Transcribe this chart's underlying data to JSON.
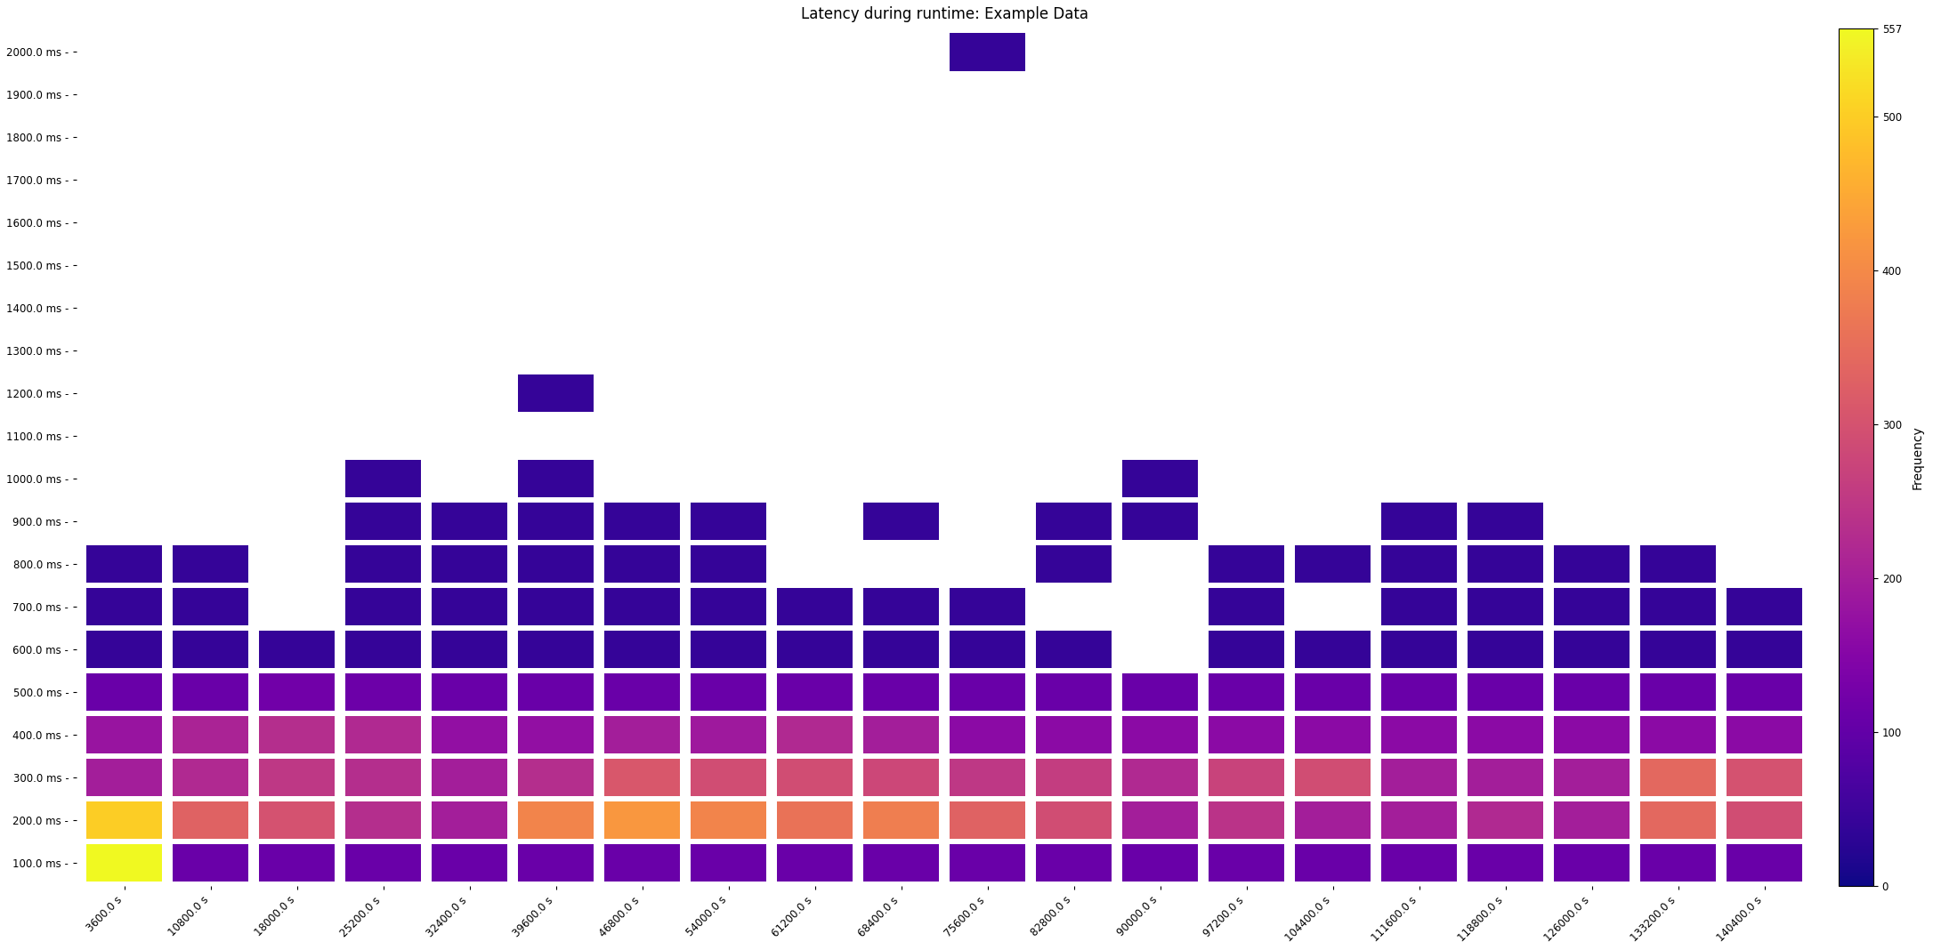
{
  "title": "Latency during runtime: Example Data",
  "colorbar_label": "Frequency",
  "colormap": "plasma",
  "vmin": 0,
  "vmax": 557,
  "x_labels": [
    "3600.0 s",
    "10800.0 s",
    "18000.0 s",
    "25200.0 s",
    "32400.0 s",
    "39600.0 s",
    "46800.0 s",
    "54000.0 s",
    "61200.0 s",
    "68400.0 s",
    "75600.0 s",
    "82800.0 s",
    "90000.0 s",
    "97200.0 s",
    "104400.0 s",
    "111600.0 s",
    "118800.0 s",
    "126000.0 s",
    "133200.0 s",
    "140400.0 s"
  ],
  "y_labels": [
    "100.0 ms -",
    "200.0 ms -",
    "300.0 ms -",
    "400.0 ms -",
    "500.0 ms -",
    "600.0 ms -",
    "700.0 ms -",
    "800.0 ms -",
    "900.0 ms -",
    "1000.0 ms -",
    "1100.0 ms -",
    "1200.0 ms -",
    "1300.0 ms -",
    "1400.0 ms -",
    "1500.0 ms -",
    "1600.0 ms -",
    "1700.0 ms -",
    "1800.0 ms -",
    "1900.0 ms -",
    "2000.0 ms -"
  ],
  "x_values": [
    3600,
    10800,
    18000,
    25200,
    32400,
    39600,
    46800,
    54000,
    61200,
    68400,
    75600,
    82800,
    90000,
    97200,
    104400,
    111600,
    118800,
    126000,
    133200,
    140400
  ],
  "y_values": [
    100,
    200,
    300,
    400,
    500,
    600,
    700,
    800,
    900,
    1000,
    1100,
    1200,
    1300,
    1400,
    1500,
    1600,
    1700,
    1800,
    1900,
    2000
  ],
  "x_step": 7200,
  "y_step": 100,
  "colorbar_ticks": [
    0,
    100,
    200,
    300,
    400,
    500,
    557
  ],
  "background_color": "#ffffff",
  "heatmap": [
    [
      557,
      110,
      110,
      110,
      110,
      110,
      110,
      110,
      110,
      110,
      110,
      110,
      110,
      110,
      110,
      110,
      110,
      110,
      110,
      110
    ],
    [
      500,
      330,
      300,
      230,
      200,
      390,
      420,
      390,
      360,
      380,
      330,
      290,
      200,
      240,
      200,
      200,
      220,
      200,
      340,
      290
    ],
    [
      200,
      220,
      250,
      230,
      200,
      230,
      310,
      290,
      290,
      280,
      250,
      260,
      220,
      270,
      290,
      200,
      200,
      200,
      340,
      300
    ],
    [
      180,
      210,
      230,
      220,
      170,
      170,
      200,
      190,
      220,
      200,
      160,
      160,
      160,
      160,
      160,
      160,
      160,
      160,
      160,
      160
    ],
    [
      110,
      110,
      120,
      115,
      110,
      110,
      110,
      110,
      110,
      110,
      110,
      110,
      110,
      110,
      110,
      110,
      110,
      110,
      110,
      110
    ],
    [
      40,
      40,
      40,
      40,
      40,
      40,
      40,
      40,
      40,
      40,
      40,
      40,
      0,
      40,
      40,
      40,
      40,
      40,
      40,
      40
    ],
    [
      40,
      40,
      0,
      40,
      40,
      40,
      40,
      40,
      40,
      40,
      40,
      0,
      0,
      40,
      0,
      40,
      40,
      40,
      40,
      40
    ],
    [
      40,
      40,
      0,
      40,
      40,
      40,
      40,
      40,
      0,
      0,
      0,
      40,
      0,
      40,
      40,
      40,
      40,
      40,
      40,
      0
    ],
    [
      0,
      0,
      0,
      40,
      40,
      40,
      40,
      40,
      0,
      40,
      0,
      40,
      40,
      0,
      0,
      40,
      40,
      0,
      0,
      0
    ],
    [
      0,
      0,
      0,
      40,
      0,
      40,
      0,
      0,
      0,
      0,
      0,
      0,
      40,
      0,
      0,
      0,
      0,
      0,
      0,
      0
    ],
    [
      0,
      0,
      0,
      0,
      0,
      0,
      0,
      0,
      0,
      0,
      0,
      0,
      0,
      0,
      0,
      0,
      0,
      0,
      0,
      0
    ],
    [
      0,
      0,
      0,
      0,
      0,
      40,
      0,
      0,
      0,
      0,
      0,
      0,
      0,
      0,
      0,
      0,
      0,
      0,
      0,
      0
    ],
    [
      0,
      0,
      0,
      0,
      0,
      0,
      0,
      0,
      0,
      0,
      0,
      0,
      0,
      0,
      0,
      0,
      0,
      0,
      0,
      0
    ],
    [
      0,
      0,
      0,
      0,
      0,
      0,
      0,
      0,
      0,
      0,
      0,
      0,
      0,
      0,
      0,
      0,
      0,
      0,
      0,
      0
    ],
    [
      0,
      0,
      0,
      0,
      0,
      0,
      0,
      0,
      0,
      0,
      0,
      0,
      0,
      0,
      0,
      0,
      0,
      0,
      0,
      0
    ],
    [
      0,
      0,
      0,
      0,
      0,
      0,
      0,
      0,
      0,
      0,
      0,
      0,
      0,
      0,
      0,
      0,
      0,
      0,
      0,
      0
    ],
    [
      0,
      0,
      0,
      0,
      0,
      0,
      0,
      0,
      0,
      0,
      0,
      0,
      0,
      0,
      0,
      0,
      0,
      0,
      0,
      0
    ],
    [
      0,
      0,
      0,
      0,
      0,
      0,
      0,
      0,
      0,
      0,
      0,
      0,
      0,
      0,
      0,
      0,
      0,
      0,
      0,
      0
    ],
    [
      0,
      0,
      0,
      0,
      0,
      0,
      0,
      0,
      0,
      0,
      0,
      0,
      0,
      0,
      0,
      0,
      0,
      0,
      0,
      0
    ],
    [
      0,
      0,
      0,
      0,
      0,
      0,
      0,
      0,
      0,
      0,
      40,
      0,
      0,
      0,
      0,
      0,
      0,
      0,
      0,
      0
    ]
  ]
}
